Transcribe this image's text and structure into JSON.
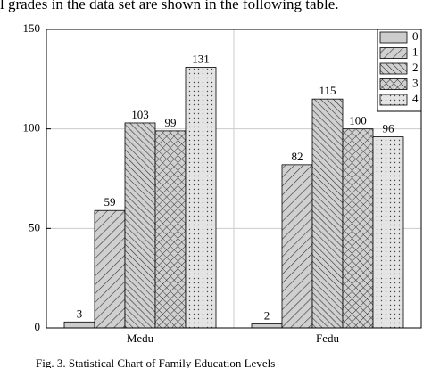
{
  "top_text": "l grades in the data set are shown in the following table.",
  "caption": "Fig. 3.  Statistical Chart of Family Education Levels",
  "chart_data": {
    "type": "bar",
    "categories": [
      "Medu",
      "Fedu"
    ],
    "series": [
      {
        "name": "0",
        "color": "#cccccc",
        "hatch": "solid",
        "values": [
          3,
          2
        ]
      },
      {
        "name": "1",
        "color": "#cccccc",
        "hatch": "forward",
        "values": [
          59,
          82
        ]
      },
      {
        "name": "2",
        "color": "#cccccc",
        "hatch": "backward",
        "values": [
          103,
          115
        ]
      },
      {
        "name": "3",
        "color": "#cccccc",
        "hatch": "cross",
        "values": [
          99,
          100
        ]
      },
      {
        "name": "4",
        "color": "#cccccc",
        "hatch": "dots",
        "values": [
          131,
          96
        ]
      }
    ],
    "ylim": [
      0,
      150
    ],
    "yticks": [
      0,
      50,
      100,
      150
    ],
    "grid": true,
    "legend": "top-right"
  }
}
